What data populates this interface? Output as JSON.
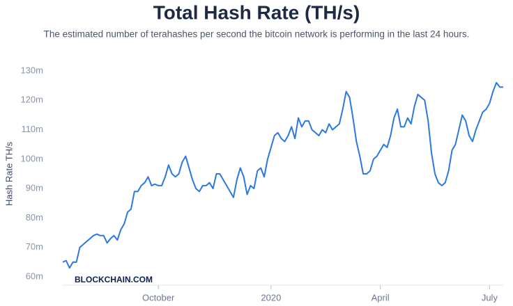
{
  "chart_data": {
    "type": "line",
    "title": "Total Hash Rate (TH/s)",
    "subtitle": "The estimated number of terahashes per second the bitcoin network is performing in the last 24 hours.",
    "y_label": "Hash Rate TH/s",
    "watermark": "BLOCKCHAIN.COM",
    "color": "#2a78e0",
    "categories": [
      null,
      null,
      null,
      null,
      null,
      null,
      null,
      null,
      null,
      null,
      null,
      null,
      null,
      null,
      null,
      null,
      null,
      null,
      null,
      null,
      null,
      null,
      null,
      null,
      null,
      null,
      null,
      null,
      "October",
      null,
      null,
      null,
      null,
      null,
      null,
      null,
      null,
      null,
      null,
      null,
      null,
      null,
      null,
      null,
      null,
      null,
      null,
      null,
      null,
      null,
      null,
      null,
      null,
      null,
      null,
      null,
      null,
      null,
      null,
      null,
      null,
      "2020",
      null,
      null,
      null,
      null,
      null,
      null,
      null,
      null,
      null,
      null,
      null,
      null,
      null,
      null,
      null,
      null,
      null,
      null,
      null,
      null,
      null,
      null,
      null,
      null,
      null,
      null,
      null,
      null,
      null,
      null,
      null,
      "April",
      null,
      null,
      null,
      null,
      null,
      null,
      null,
      null,
      null,
      null,
      null,
      null,
      null,
      null,
      null,
      null,
      null,
      null,
      null,
      null,
      null,
      null,
      null,
      null,
      null,
      null,
      null,
      null,
      null,
      null,
      null,
      "July",
      null,
      null,
      null,
      null
    ],
    "values": [
      65,
      65.5,
      63,
      65,
      65,
      70,
      71,
      72,
      73,
      74,
      74.5,
      74,
      74,
      71.5,
      73,
      74,
      72.5,
      76,
      78,
      82,
      83,
      89,
      89,
      91,
      92,
      94,
      91,
      91.5,
      91,
      91,
      94,
      98,
      95,
      94,
      95,
      99,
      101,
      97,
      93,
      90,
      89,
      91,
      91,
      92,
      90,
      95,
      95,
      93,
      91,
      89,
      87,
      93,
      97,
      94,
      88,
      91,
      90,
      96,
      97,
      94,
      100,
      104,
      108,
      109,
      107,
      106,
      108,
      111,
      107,
      114,
      111,
      113,
      113,
      110,
      109,
      108,
      110,
      109,
      112,
      110,
      111,
      112,
      117,
      123,
      121,
      114,
      106,
      101,
      95,
      95,
      96,
      100,
      101,
      103,
      105,
      104,
      108,
      114,
      117,
      111,
      111,
      114,
      112,
      118,
      122,
      121,
      120,
      113,
      102,
      95,
      92,
      91,
      92,
      96,
      103,
      105,
      110,
      115,
      113,
      108,
      106,
      110,
      113,
      116,
      117,
      119,
      123,
      126,
      124.5,
      124.5
    ],
    "ylim": [
      60,
      130
    ],
    "yticks": [
      {
        "value": 60,
        "label": "60m"
      },
      {
        "value": 70,
        "label": "70m"
      },
      {
        "value": 80,
        "label": "80m"
      },
      {
        "value": 90,
        "label": "90m"
      },
      {
        "value": 100,
        "label": "100m"
      },
      {
        "value": 110,
        "label": "110m"
      },
      {
        "value": 120,
        "label": "120m"
      },
      {
        "value": 130,
        "label": "130m"
      }
    ],
    "grid": false
  }
}
